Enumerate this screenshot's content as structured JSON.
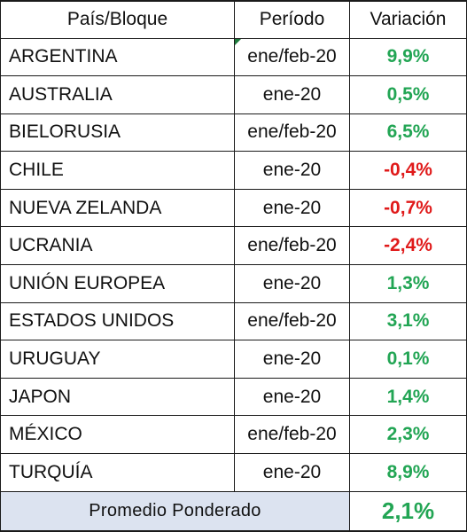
{
  "table": {
    "headers": {
      "country": "País/Bloque",
      "period": "Período",
      "variation": "Variación"
    },
    "rows": [
      {
        "country": "ARGENTINA",
        "period": "ene/feb-20",
        "variation": "9,9%",
        "sign": "positive"
      },
      {
        "country": "AUSTRALIA",
        "period": "ene-20",
        "variation": "0,5%",
        "sign": "positive"
      },
      {
        "country": "BIELORUSIA",
        "period": "ene/feb-20",
        "variation": "6,5%",
        "sign": "positive"
      },
      {
        "country": "CHILE",
        "period": "ene-20",
        "variation": "-0,4%",
        "sign": "negative"
      },
      {
        "country": "NUEVA ZELANDA",
        "period": "ene-20",
        "variation": "-0,7%",
        "sign": "negative"
      },
      {
        "country": "UCRANIA",
        "period": "ene/feb-20",
        "variation": "-2,4%",
        "sign": "negative"
      },
      {
        "country": "UNIÓN EUROPEA",
        "period": "ene-20",
        "variation": "1,3%",
        "sign": "positive"
      },
      {
        "country": "ESTADOS UNIDOS",
        "period": "ene/feb-20",
        "variation": "3,1%",
        "sign": "positive"
      },
      {
        "country": "URUGUAY",
        "period": "ene-20",
        "variation": "0,1%",
        "sign": "positive"
      },
      {
        "country": "JAPON",
        "period": "ene-20",
        "variation": "1,4%",
        "sign": "positive"
      },
      {
        "country": "MÉXICO",
        "period": "ene/feb-20",
        "variation": "2,3%",
        "sign": "positive"
      },
      {
        "country": "TURQUÍA",
        "period": "ene-20",
        "variation": "8,9%",
        "sign": "positive"
      }
    ],
    "footer": {
      "label": "Promedio Ponderado",
      "value": "2,1%"
    }
  },
  "colors": {
    "positive": "#22a554",
    "negative": "#e01a1a",
    "footer_background": "#dce3f0",
    "border": "#1a1a1a"
  }
}
